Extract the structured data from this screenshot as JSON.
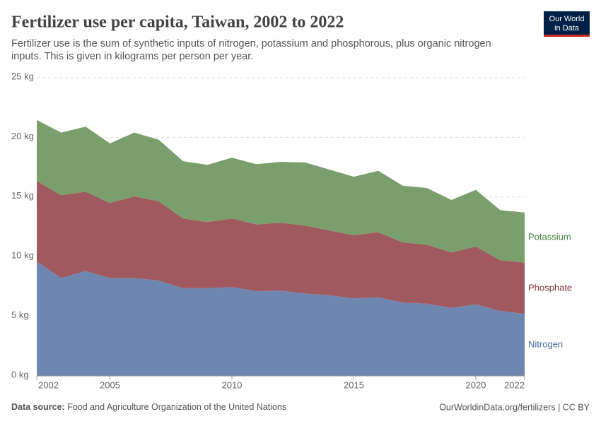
{
  "chart_data": {
    "type": "stacked-area",
    "title": "Fertilizer use per capita, Taiwan, 2002 to 2022",
    "subtitle_lines": [
      "Fertilizer use is the sum of synthetic inputs of nitrogen, potassium and phosphorous, plus organic nitrogen",
      "inputs. This is given in kilograms per person per year."
    ],
    "logo_lines": [
      "Our World",
      "in Data"
    ],
    "source_label": "Data source:",
    "source": "Food and Agriculture Organization of the United Nations",
    "footer_right": "OurWorldinData.org/fertilizers | CC BY",
    "x": [
      2002,
      2003,
      2004,
      2005,
      2006,
      2007,
      2008,
      2009,
      2010,
      2011,
      2012,
      2013,
      2014,
      2015,
      2016,
      2017,
      2018,
      2019,
      2020,
      2021,
      2022
    ],
    "xlim": [
      2002,
      2022
    ],
    "xticks": [
      2002,
      2005,
      2010,
      2015,
      2020,
      2022
    ],
    "ylim": [
      0,
      25
    ],
    "yticks": [
      {
        "value": 0,
        "label": "0 kg"
      },
      {
        "value": 5,
        "label": "5 kg"
      },
      {
        "value": 10,
        "label": "10 kg"
      },
      {
        "value": 15,
        "label": "15 kg"
      },
      {
        "value": 20,
        "label": "20 kg"
      },
      {
        "value": 25,
        "label": "25 kg"
      }
    ],
    "grid": true,
    "series": [
      {
        "name": "Nitrogen",
        "color": "#6d87b0",
        "label_color": "#4c6a9c",
        "values": [
          9.6,
          8.2,
          8.8,
          8.2,
          8.2,
          8.0,
          7.35,
          7.35,
          7.45,
          7.1,
          7.15,
          6.9,
          6.75,
          6.5,
          6.6,
          6.15,
          6.05,
          5.7,
          6.0,
          5.45,
          5.2
        ]
      },
      {
        "name": "Phosphate",
        "color": "#a05a5f",
        "label_color": "#883039",
        "values": [
          6.75,
          6.95,
          6.65,
          6.3,
          6.85,
          6.65,
          5.85,
          5.55,
          5.75,
          5.6,
          5.7,
          5.7,
          5.45,
          5.3,
          5.45,
          5.05,
          4.95,
          4.65,
          4.85,
          4.25,
          4.3
        ]
      },
      {
        "name": "Potassium",
        "color": "#7a9e6c",
        "label_color": "#3e7d3e",
        "values": [
          5.1,
          5.25,
          5.45,
          5.0,
          5.35,
          5.15,
          4.8,
          4.8,
          5.1,
          5.05,
          5.1,
          5.3,
          5.1,
          4.9,
          5.15,
          4.75,
          4.75,
          4.4,
          4.75,
          4.2,
          4.2
        ]
      }
    ]
  }
}
